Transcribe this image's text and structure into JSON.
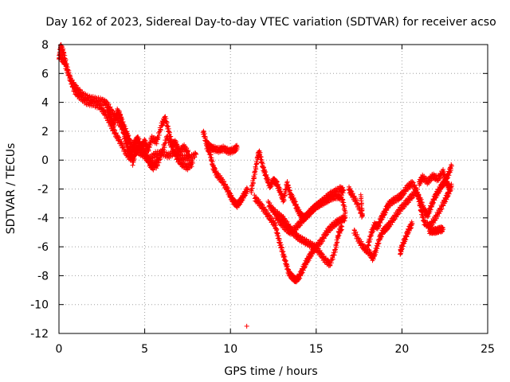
{
  "chart_data": {
    "type": "scatter",
    "title": "Day 162 of 2023, Sidereal Day-to-day VTEC variation (SDTVAR) for receiver acso",
    "xlabel": "GPS time / hours",
    "ylabel": "SDTVAR / TECUs",
    "xlim": [
      0,
      25
    ],
    "ylim": [
      -12,
      8
    ],
    "xticks": [
      0,
      5,
      10,
      15,
      20,
      25
    ],
    "yticks": [
      8,
      6,
      4,
      2,
      0,
      -2,
      -4,
      -6,
      -8,
      -10,
      -12
    ],
    "grid": true,
    "marker": "+",
    "color": "#ff0000",
    "series": [
      {
        "name": "SDTVAR",
        "tracks": [
          [
            [
              0.0,
              7.0
            ],
            [
              0.1,
              7.9
            ],
            [
              0.25,
              7.5
            ],
            [
              0.45,
              6.5
            ],
            [
              0.7,
              5.5
            ],
            [
              1.0,
              5.0
            ],
            [
              1.3,
              4.6
            ],
            [
              1.7,
              4.3
            ],
            [
              2.1,
              4.2
            ],
            [
              2.5,
              4.1
            ],
            [
              2.8,
              3.9
            ],
            [
              3.1,
              3.3
            ],
            [
              3.4,
              2.8
            ],
            [
              3.7,
              2.2
            ],
            [
              4.0,
              1.5
            ],
            [
              4.3,
              1.0
            ],
            [
              4.6,
              0.6
            ],
            [
              4.9,
              0.4
            ],
            [
              5.2,
              0.0
            ],
            [
              5.6,
              0.4
            ],
            [
              6.0,
              0.5
            ],
            [
              6.4,
              0.3
            ],
            [
              6.8,
              0.6
            ],
            [
              7.2,
              0.2
            ],
            [
              7.6,
              0.1
            ],
            [
              8.0,
              0.4
            ]
          ],
          [
            [
              0.05,
              7.2
            ],
            [
              0.3,
              6.8
            ],
            [
              0.6,
              5.8
            ],
            [
              0.9,
              4.8
            ],
            [
              1.2,
              4.4
            ],
            [
              1.6,
              4.0
            ],
            [
              2.0,
              3.9
            ],
            [
              2.4,
              3.7
            ],
            [
              2.7,
              3.2
            ],
            [
              3.0,
              2.5
            ],
            [
              3.3,
              1.8
            ],
            [
              3.6,
              1.2
            ],
            [
              3.9,
              0.5
            ],
            [
              4.2,
              0.1
            ],
            [
              4.5,
              0.6
            ],
            [
              4.8,
              1.0
            ],
            [
              5.1,
              0.3
            ],
            [
              5.4,
              -0.2
            ],
            [
              5.7,
              -0.4
            ],
            [
              6.0,
              0.5
            ],
            [
              6.3,
              1.6
            ],
            [
              6.6,
              0.9
            ],
            [
              6.9,
              0.1
            ],
            [
              7.2,
              -0.3
            ],
            [
              7.5,
              -0.5
            ],
            [
              7.8,
              -0.2
            ]
          ],
          [
            [
              2.8,
              3.6
            ],
            [
              3.0,
              3.0
            ],
            [
              3.2,
              2.4
            ],
            [
              3.4,
              3.4
            ],
            [
              3.6,
              2.9
            ],
            [
              3.8,
              1.7
            ],
            [
              4.0,
              0.9
            ],
            [
              4.2,
              0.4
            ],
            [
              4.4,
              1.2
            ],
            [
              4.6,
              1.5
            ],
            [
              4.8,
              0.9
            ],
            [
              5.0,
              1.3
            ],
            [
              5.2,
              0.7
            ],
            [
              5.4,
              1.5
            ],
            [
              5.7,
              1.3
            ],
            [
              6.0,
              2.5
            ],
            [
              6.2,
              2.9
            ],
            [
              6.4,
              2.0
            ],
            [
              6.6,
              1.1
            ],
            [
              6.8,
              1.2
            ],
            [
              7.0,
              0.6
            ],
            [
              7.3,
              0.9
            ],
            [
              7.6,
              0.4
            ]
          ],
          [
            [
              3.5,
              3.3
            ],
            [
              3.7,
              2.6
            ],
            [
              3.9,
              2.0
            ],
            [
              4.1,
              1.4
            ],
            [
              4.3,
              -0.2
            ],
            [
              4.5,
              0.7
            ],
            [
              4.7,
              1.1
            ],
            [
              5.0,
              0.5
            ],
            [
              5.3,
              -0.3
            ],
            [
              5.5,
              -0.5
            ],
            [
              5.8,
              0.2
            ]
          ],
          [
            [
              8.4,
              2.0
            ],
            [
              8.6,
              1.2
            ],
            [
              8.8,
              0.9
            ],
            [
              9.0,
              0.8
            ],
            [
              9.3,
              0.7
            ],
            [
              9.6,
              0.8
            ],
            [
              9.9,
              0.6
            ],
            [
              10.2,
              0.7
            ],
            [
              10.4,
              0.9
            ]
          ],
          [
            [
              8.6,
              1.0
            ],
            [
              8.8,
              0.5
            ],
            [
              9.0,
              -0.5
            ],
            [
              9.2,
              -1.0
            ],
            [
              9.5,
              -1.4
            ],
            [
              9.8,
              -2.0
            ],
            [
              10.0,
              -2.5
            ],
            [
              10.2,
              -2.9
            ],
            [
              10.4,
              -3.1
            ],
            [
              10.6,
              -2.8
            ],
            [
              10.8,
              -2.4
            ],
            [
              11.0,
              -2.0
            ]
          ],
          [
            [
              11.2,
              -2.2
            ],
            [
              11.4,
              -1.0
            ],
            [
              11.6,
              0.3
            ],
            [
              11.7,
              0.5
            ],
            [
              11.9,
              -0.5
            ],
            [
              12.1,
              -1.2
            ],
            [
              12.3,
              -1.8
            ],
            [
              12.5,
              -1.4
            ],
            [
              12.7,
              -1.6
            ],
            [
              12.9,
              -2.2
            ],
            [
              13.1,
              -2.8
            ],
            [
              13.3,
              -1.6
            ],
            [
              13.5,
              -2.4
            ],
            [
              13.7,
              -2.8
            ],
            [
              13.9,
              -3.4
            ],
            [
              14.1,
              -3.8
            ],
            [
              14.3,
              -4.0
            ],
            [
              14.6,
              -3.7
            ],
            [
              14.9,
              -3.3
            ],
            [
              15.2,
              -3.0
            ],
            [
              15.5,
              -2.7
            ],
            [
              15.8,
              -2.4
            ],
            [
              16.1,
              -2.2
            ],
            [
              16.4,
              -2.0
            ],
            [
              16.6,
              -2.1
            ]
          ],
          [
            [
              11.4,
              -2.6
            ],
            [
              11.7,
              -3.0
            ],
            [
              12.0,
              -3.5
            ],
            [
              12.3,
              -4.0
            ],
            [
              12.6,
              -4.5
            ],
            [
              12.8,
              -5.4
            ],
            [
              13.0,
              -6.2
            ],
            [
              13.2,
              -7.0
            ],
            [
              13.4,
              -7.8
            ],
            [
              13.6,
              -8.1
            ],
            [
              13.8,
              -8.3
            ],
            [
              14.0,
              -8.1
            ],
            [
              14.2,
              -7.6
            ],
            [
              14.4,
              -7.1
            ],
            [
              14.6,
              -6.7
            ],
            [
              14.8,
              -6.3
            ],
            [
              15.0,
              -6.0
            ],
            [
              15.3,
              -5.6
            ],
            [
              15.6,
              -5.0
            ],
            [
              15.9,
              -4.6
            ],
            [
              16.2,
              -4.3
            ],
            [
              16.5,
              -4.1
            ],
            [
              16.7,
              -4.0
            ]
          ],
          [
            [
              12.2,
              -3.0
            ],
            [
              12.5,
              -3.5
            ],
            [
              12.8,
              -3.8
            ],
            [
              13.1,
              -4.1
            ],
            [
              13.4,
              -4.6
            ],
            [
              13.7,
              -5.1
            ],
            [
              14.0,
              -5.4
            ],
            [
              14.3,
              -5.6
            ],
            [
              14.6,
              -5.8
            ],
            [
              14.9,
              -6.0
            ],
            [
              15.2,
              -6.4
            ],
            [
              15.5,
              -6.9
            ],
            [
              15.8,
              -7.2
            ],
            [
              16.1,
              -6.3
            ],
            [
              16.3,
              -5.1
            ],
            [
              16.5,
              -4.6
            ]
          ],
          [
            [
              12.6,
              -3.8
            ],
            [
              12.9,
              -4.3
            ],
            [
              13.2,
              -4.7
            ],
            [
              13.5,
              -5.0
            ],
            [
              13.8,
              -4.7
            ],
            [
              14.1,
              -4.3
            ],
            [
              14.4,
              -3.9
            ],
            [
              14.7,
              -3.5
            ],
            [
              15.0,
              -3.2
            ],
            [
              15.3,
              -3.0
            ],
            [
              15.6,
              -2.8
            ],
            [
              15.9,
              -2.6
            ],
            [
              16.2,
              -2.5
            ],
            [
              16.5,
              -2.6
            ],
            [
              16.7,
              -3.6
            ]
          ],
          [
            [
              16.9,
              -2.0
            ],
            [
              17.1,
              -2.4
            ],
            [
              17.4,
              -3.0
            ],
            [
              17.7,
              -3.9
            ],
            [
              17.6,
              -2.4
            ]
          ],
          [
            [
              17.2,
              -4.9
            ],
            [
              17.5,
              -5.6
            ],
            [
              17.8,
              -6.1
            ],
            [
              18.1,
              -6.4
            ],
            [
              18.3,
              -6.8
            ],
            [
              18.5,
              -6.2
            ],
            [
              18.7,
              -5.4
            ],
            [
              18.9,
              -4.9
            ],
            [
              19.1,
              -4.7
            ],
            [
              19.3,
              -4.4
            ],
            [
              19.6,
              -3.9
            ],
            [
              19.9,
              -3.4
            ],
            [
              20.2,
              -3.0
            ],
            [
              20.5,
              -2.6
            ],
            [
              20.8,
              -2.2
            ],
            [
              21.1,
              -2.8
            ],
            [
              21.3,
              -3.5
            ],
            [
              21.5,
              -3.8
            ],
            [
              21.7,
              -3.2
            ],
            [
              21.9,
              -2.6
            ],
            [
              22.1,
              -2.2
            ],
            [
              22.3,
              -1.8
            ],
            [
              22.5,
              -1.5
            ],
            [
              22.7,
              -1.0
            ],
            [
              22.9,
              -0.4
            ]
          ],
          [
            [
              18.0,
              -6.0
            ],
            [
              18.2,
              -5.1
            ],
            [
              18.4,
              -4.5
            ],
            [
              18.6,
              -4.6
            ],
            [
              18.8,
              -4.0
            ],
            [
              19.0,
              -3.6
            ],
            [
              19.2,
              -3.1
            ],
            [
              19.5,
              -2.8
            ],
            [
              19.8,
              -2.6
            ],
            [
              20.0,
              -2.4
            ],
            [
              20.3,
              -1.9
            ],
            [
              20.6,
              -1.6
            ],
            [
              20.9,
              -2.2
            ],
            [
              21.1,
              -3.4
            ],
            [
              21.3,
              -4.3
            ],
            [
              21.6,
              -4.6
            ],
            [
              21.9,
              -4.1
            ],
            [
              22.2,
              -3.5
            ],
            [
              22.5,
              -2.8
            ],
            [
              22.7,
              -2.3
            ],
            [
              22.9,
              -1.8
            ]
          ],
          [
            [
              19.9,
              -6.4
            ],
            [
              20.0,
              -6.0
            ],
            [
              20.2,
              -5.4
            ],
            [
              20.4,
              -4.8
            ],
            [
              20.6,
              -4.4
            ]
          ],
          [
            [
              21.6,
              -4.9
            ],
            [
              21.8,
              -4.9
            ],
            [
              22.0,
              -4.9
            ],
            [
              22.2,
              -4.8
            ],
            [
              22.4,
              -4.8
            ]
          ],
          [
            [
              21.0,
              -1.6
            ],
            [
              21.2,
              -1.2
            ],
            [
              21.5,
              -1.5
            ],
            [
              21.8,
              -1.1
            ],
            [
              22.1,
              -1.3
            ],
            [
              22.4,
              -0.8
            ],
            [
              22.6,
              -1.6
            ],
            [
              22.8,
              -1.9
            ]
          ]
        ]
      }
    ],
    "outliers": [
      [
        10.95,
        -11.5
      ]
    ]
  }
}
